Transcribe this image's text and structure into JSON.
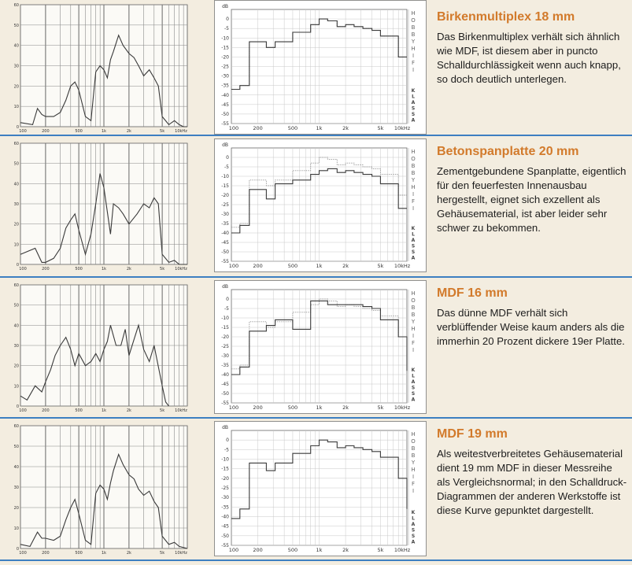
{
  "chart_data": [
    {
      "type": "line",
      "title": "",
      "body": "",
      "left_chart": {
        "y_ticks": [
          "60",
          "50",
          "40",
          "30",
          "20",
          "10",
          "0"
        ],
        "x_ticks": [
          "100",
          "200",
          "500",
          "1k",
          "2k",
          "5k",
          "10kHz"
        ],
        "x": [
          100,
          140,
          160,
          180,
          200,
          250,
          300,
          350,
          400,
          450,
          500,
          600,
          700,
          800,
          900,
          1000,
          1100,
          1200,
          1300,
          1500,
          1700,
          2000,
          2300,
          2600,
          3000,
          3500,
          4000,
          4500,
          5000,
          6000,
          7000,
          8000,
          9000,
          10000
        ],
        "y": [
          2,
          1,
          9,
          6,
          5,
          5,
          7,
          13,
          20,
          22,
          18,
          5,
          3,
          27,
          30,
          28,
          24,
          33,
          37,
          45,
          40,
          36,
          34,
          30,
          25,
          28,
          24,
          20,
          5,
          1,
          3,
          1,
          0,
          0
        ]
      },
      "right_chart": {
        "y_unit": "dB",
        "y_ticks": [
          "0",
          "-5",
          "-10",
          "-15",
          "-20",
          "-25",
          "-30",
          "-35",
          "-40",
          "-45",
          "-50",
          "-55"
        ],
        "x_ticks": [
          "100",
          "200",
          "500",
          "1k",
          "2k",
          "5k",
          "10kHz"
        ],
        "side_label_top": "HOBBY HIFI",
        "side_label_bottom": "KLASSA",
        "x": [
          100,
          125,
          160,
          200,
          250,
          315,
          400,
          500,
          630,
          800,
          1000,
          1250,
          1600,
          2000,
          2500,
          3150,
          4000,
          5000,
          6300,
          8000,
          10000
        ],
        "y": [
          -37,
          -35,
          -12,
          -12,
          -15,
          -12,
          -12,
          -7,
          -7,
          -3,
          0,
          -1,
          -4,
          -3,
          -4,
          -5,
          -6,
          -9,
          -9,
          -20,
          -20
        ],
        "ref_y": [
          -37,
          -35,
          -12,
          -12,
          -15,
          -12,
          -12,
          -7,
          -7,
          -3,
          0,
          -1,
          -4,
          -3,
          -4,
          -5,
          -6,
          -9,
          -9,
          -20,
          -20
        ]
      }
    },
    {
      "type": "line",
      "title": "",
      "body": "",
      "left_chart": {
        "y_ticks": [
          "60",
          "50",
          "40",
          "30",
          "20",
          "10",
          "0"
        ],
        "x_ticks": [
          "100",
          "200",
          "500",
          "1k",
          "2k",
          "5k",
          "10kHz"
        ],
        "x": [
          100,
          150,
          180,
          200,
          250,
          300,
          350,
          400,
          450,
          500,
          600,
          700,
          800,
          900,
          1000,
          1200,
          1300,
          1500,
          1700,
          2000,
          2500,
          3000,
          3500,
          4000,
          4500,
          5000,
          6000,
          7000,
          8000,
          10000
        ],
        "y": [
          5,
          8,
          1,
          1,
          3,
          8,
          18,
          22,
          25,
          17,
          5,
          15,
          30,
          45,
          38,
          15,
          30,
          28,
          25,
          20,
          25,
          30,
          28,
          33,
          30,
          5,
          1,
          2,
          0,
          0
        ]
      },
      "right_chart": {
        "y_unit": "dB",
        "y_ticks": [
          "0",
          "-5",
          "-10",
          "-15",
          "-20",
          "-25",
          "-30",
          "-35",
          "-40",
          "-45",
          "-50",
          "-55"
        ],
        "x_ticks": [
          "100",
          "200",
          "500",
          "1k",
          "2k",
          "5k",
          "10kHz"
        ],
        "side_label_top": "HOBBY HIFI",
        "side_label_bottom": "KLASSA",
        "x": [
          100,
          125,
          160,
          200,
          250,
          315,
          400,
          500,
          630,
          800,
          1000,
          1250,
          1600,
          2000,
          2500,
          3150,
          4000,
          5000,
          6300,
          8000,
          10000
        ],
        "y": [
          -40,
          -36,
          -17,
          -17,
          -22,
          -14,
          -14,
          -12,
          -12,
          -9,
          -7,
          -6,
          -8,
          -7,
          -8,
          -9,
          -10,
          -14,
          -14,
          -27,
          -27
        ],
        "ref_y": [
          -37,
          -35,
          -12,
          -12,
          -15,
          -12,
          -12,
          -7,
          -7,
          -3,
          0,
          -1,
          -4,
          -3,
          -4,
          -5,
          -6,
          -9,
          -9,
          -20,
          -20
        ]
      }
    },
    {
      "type": "line",
      "title": "",
      "body": "",
      "left_chart": {
        "y_ticks": [
          "60",
          "50",
          "40",
          "30",
          "20",
          "10",
          "0"
        ],
        "x_ticks": [
          "100",
          "200",
          "500",
          "1k",
          "2k",
          "5k",
          "10kHz"
        ],
        "x": [
          100,
          120,
          150,
          180,
          200,
          230,
          260,
          300,
          350,
          400,
          450,
          500,
          600,
          700,
          800,
          900,
          1000,
          1100,
          1200,
          1400,
          1600,
          1800,
          2000,
          2300,
          2600,
          3000,
          3500,
          4000,
          5000,
          5500,
          6000
        ],
        "y": [
          5,
          3,
          10,
          7,
          12,
          18,
          25,
          30,
          34,
          28,
          20,
          26,
          20,
          22,
          26,
          22,
          28,
          32,
          40,
          30,
          30,
          38,
          25,
          33,
          40,
          28,
          22,
          30,
          10,
          2,
          0
        ]
      },
      "right_chart": {
        "y_unit": "dB",
        "y_ticks": [
          "0",
          "-5",
          "-10",
          "-15",
          "-20",
          "-25",
          "-30",
          "-35",
          "-40",
          "-45",
          "-50",
          "-55"
        ],
        "x_ticks": [
          "100",
          "200",
          "500",
          "1k",
          "2k",
          "5k",
          "10kHz"
        ],
        "side_label_top": "HOBBY HIFI",
        "side_label_bottom": "KLASSA",
        "x": [
          100,
          125,
          160,
          200,
          250,
          315,
          400,
          500,
          630,
          800,
          1000,
          1250,
          1600,
          2000,
          2500,
          3150,
          4000,
          5000,
          6300,
          8000,
          10000
        ],
        "y": [
          -40,
          -36,
          -17,
          -17,
          -14,
          -11,
          -11,
          -16,
          -16,
          -1,
          -1,
          -3,
          -3,
          -3,
          -3,
          -4,
          -5,
          -11,
          -11,
          -20,
          -38
        ],
        "ref_y": [
          -37,
          -35,
          -12,
          -12,
          -15,
          -12,
          -12,
          -7,
          -7,
          -3,
          0,
          -1,
          -4,
          -3,
          -4,
          -5,
          -6,
          -9,
          -9,
          -20,
          -20
        ]
      }
    },
    {
      "type": "line",
      "title": "",
      "body": "",
      "left_chart": {
        "y_ticks": [
          "60",
          "50",
          "40",
          "30",
          "20",
          "10",
          "0"
        ],
        "x_ticks": [
          "100",
          "200",
          "500",
          "1k",
          "2k",
          "5k",
          "10kHz"
        ],
        "x": [
          100,
          130,
          160,
          180,
          200,
          250,
          300,
          350,
          400,
          450,
          500,
          600,
          700,
          800,
          900,
          1000,
          1100,
          1200,
          1300,
          1500,
          1700,
          2000,
          2300,
          2600,
          3000,
          3500,
          4000,
          4500,
          5000,
          6000,
          7000,
          8000,
          10000
        ],
        "y": [
          2,
          1,
          8,
          5,
          5,
          4,
          6,
          14,
          20,
          24,
          17,
          4,
          2,
          27,
          31,
          29,
          24,
          32,
          38,
          46,
          41,
          36,
          34,
          29,
          26,
          28,
          23,
          20,
          6,
          2,
          3,
          1,
          0
        ]
      },
      "right_chart": {
        "y_unit": "dB",
        "y_ticks": [
          "0",
          "-5",
          "-10",
          "-15",
          "-20",
          "-25",
          "-30",
          "-35",
          "-40",
          "-45",
          "-50",
          "-55"
        ],
        "x_ticks": [
          "100",
          "200",
          "500",
          "1k",
          "2k",
          "5k",
          "10kHz"
        ],
        "side_label_top": "HOBBY HIFI",
        "side_label_bottom": "KLASSA",
        "x": [
          100,
          125,
          160,
          200,
          250,
          315,
          400,
          500,
          630,
          800,
          1000,
          1250,
          1600,
          2000,
          2500,
          3150,
          4000,
          5000,
          6300,
          8000,
          10000
        ],
        "y": [
          -41,
          -36,
          -12,
          -12,
          -16,
          -12,
          -12,
          -7,
          -7,
          -3,
          0,
          -1,
          -4,
          -3,
          -4,
          -5,
          -6,
          -9,
          -9,
          -20,
          -36
        ],
        "ref_y": [
          -37,
          -35,
          -12,
          -12,
          -15,
          -12,
          -12,
          -7,
          -7,
          -3,
          0,
          -1,
          -4,
          -3,
          -4,
          -5,
          -6,
          -9,
          -9,
          -20,
          -20
        ]
      }
    }
  ],
  "sections": [
    {
      "title": "Birkenmultiplex 18 mm",
      "body": "Das Birkenmultiplex verhält sich ähnlich wie MDF, ist diesem aber in puncto Schalldurchlässigkeit wenn auch knapp, so doch deutlich unterlegen."
    },
    {
      "title": "Betonspanplatte 20 mm",
      "body": "Zementgebundene Spanplatte, eigentlich für den feuerfesten Innenausbau hergestellt, eignet sich exzellent als Gehäusematerial, ist aber leider sehr schwer zu bekommen."
    },
    {
      "title": "MDF 16 mm",
      "body": "Das dünne MDF verhält sich verblüffender Weise kaum anders als die immerhin 20 Prozent dickere 19er Platte."
    },
    {
      "title": "MDF 19 mm",
      "body": "Als weitestverbreitetes Gehäusematerial dient 19 mm MDF in dieser Messreihe als Vergleichsnormal; in den Schalldruck-Diagrammen der anderen Werkstoffe ist diese Kurve gepunktet dargestellt."
    }
  ],
  "colors": {
    "heading": "#d27a2b",
    "separator": "#3d7fc1",
    "curve": "#3a3a3a",
    "reference": "#9a9a9a",
    "grid": "#c8c8c8"
  }
}
